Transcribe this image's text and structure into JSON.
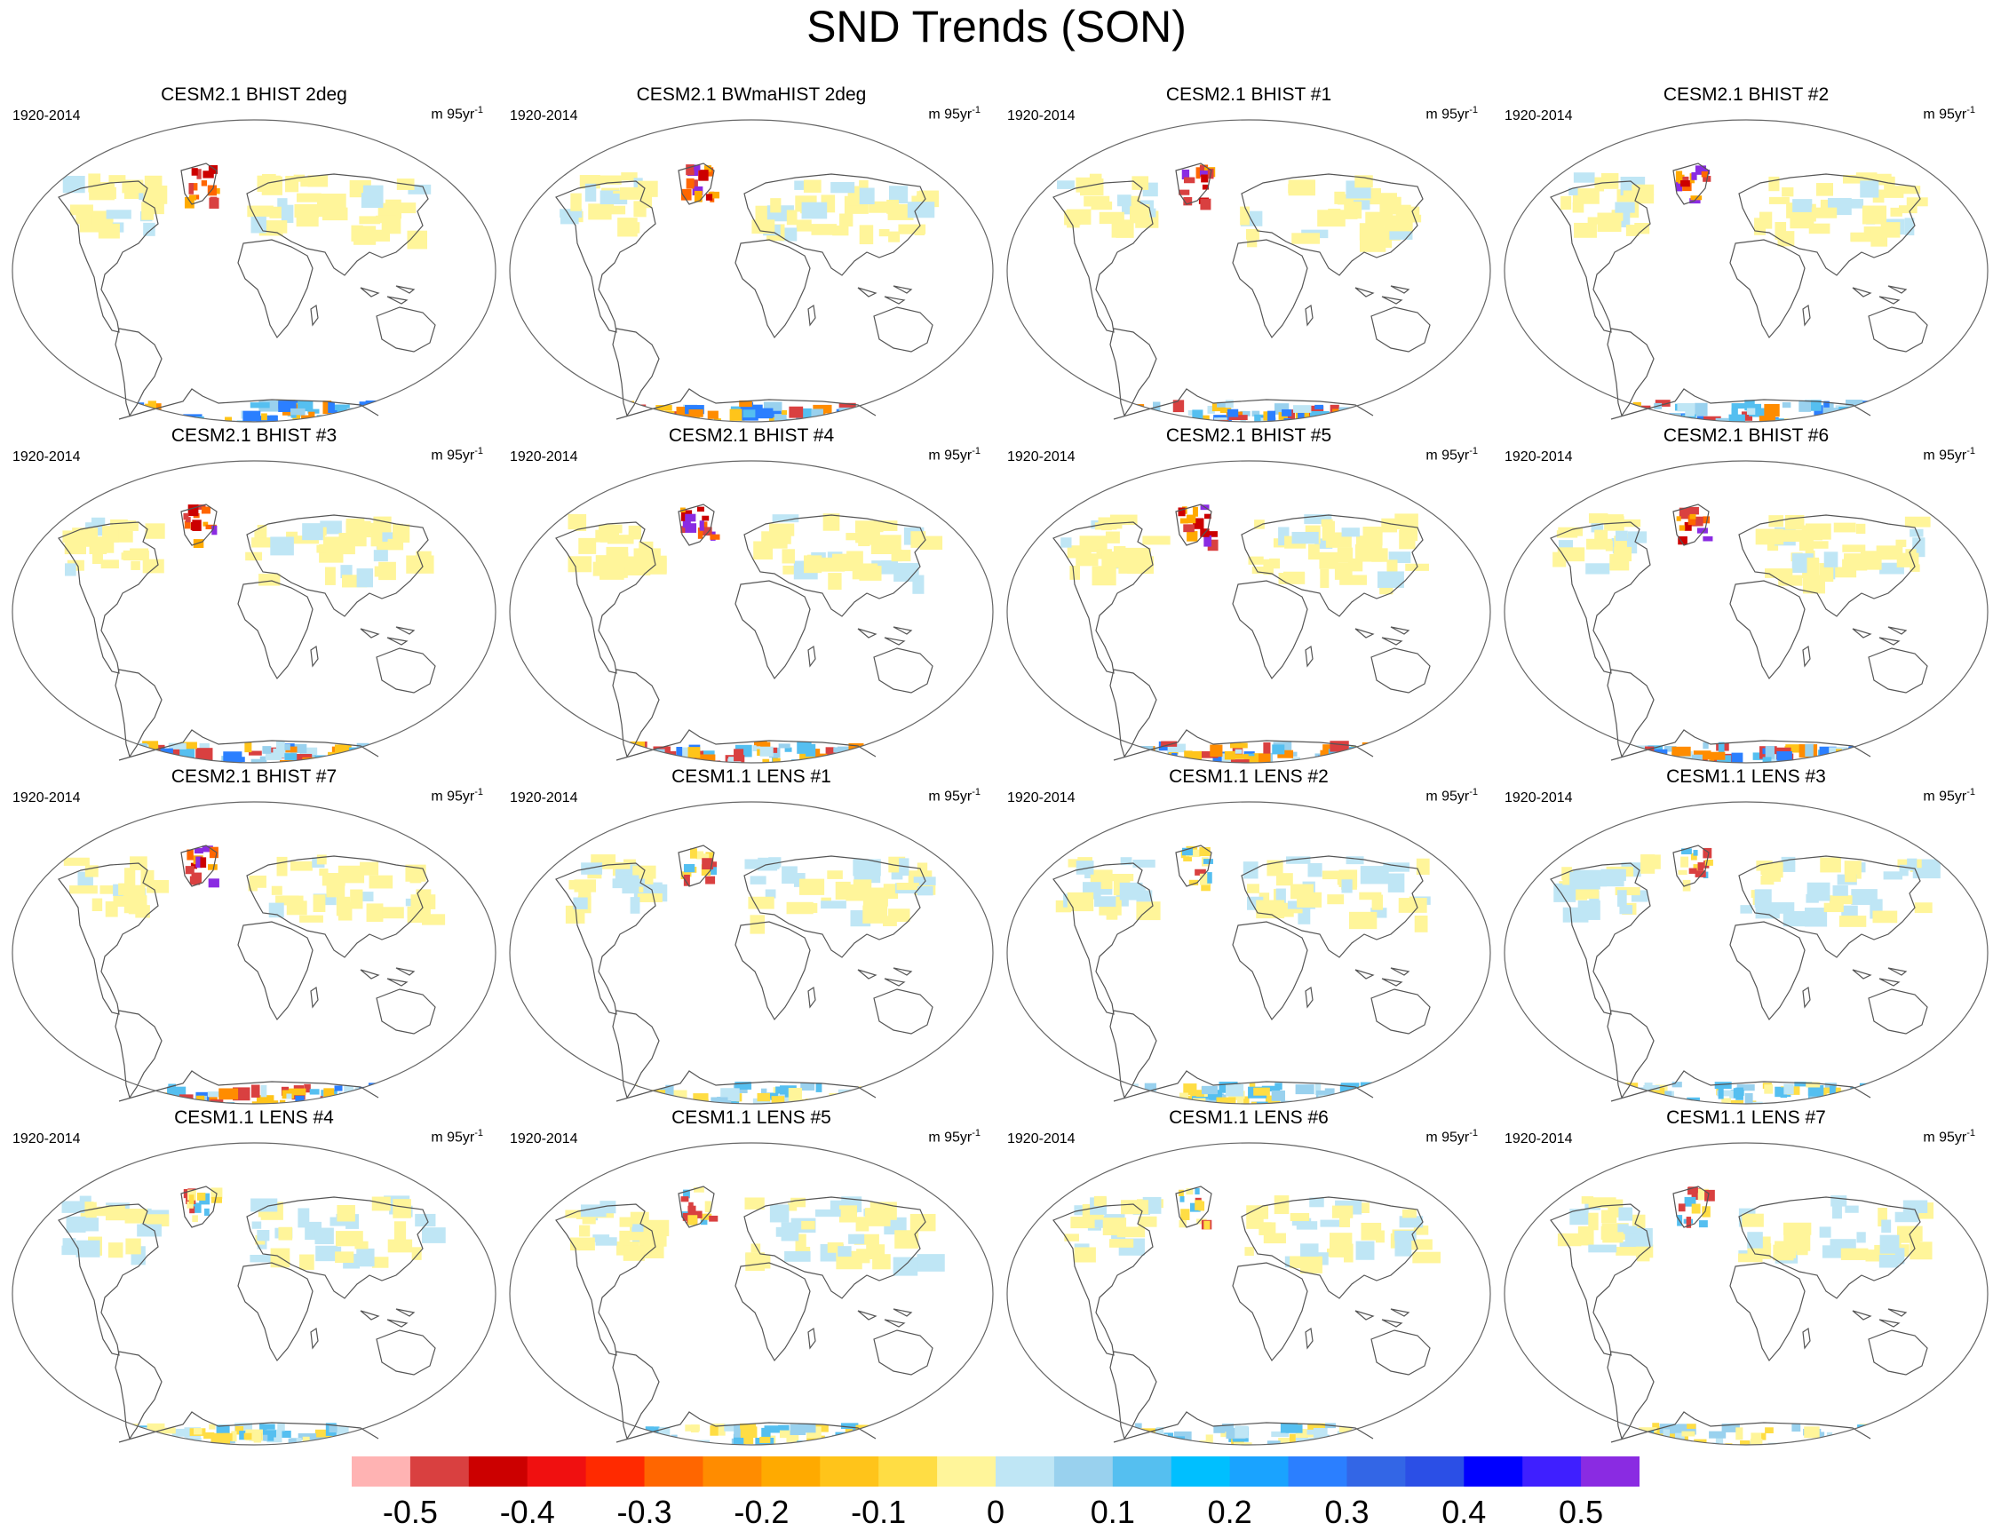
{
  "title": "SND Trends (SON)",
  "panel_common": {
    "period": "1920-2014",
    "units_base": "m 95yr",
    "units_exp": "-1"
  },
  "panels": [
    {
      "title": "CESM2.1 BHIST 2deg",
      "group": "cesm2"
    },
    {
      "title": "CESM2.1 BWmaHIST 2deg",
      "group": "cesm2"
    },
    {
      "title": "CESM2.1 BHIST #1",
      "group": "cesm2"
    },
    {
      "title": "CESM2.1 BHIST #2",
      "group": "cesm2"
    },
    {
      "title": "CESM2.1 BHIST #3",
      "group": "cesm2"
    },
    {
      "title": "CESM2.1 BHIST #4",
      "group": "cesm2"
    },
    {
      "title": "CESM2.1 BHIST #5",
      "group": "cesm2"
    },
    {
      "title": "CESM2.1 BHIST #6",
      "group": "cesm2"
    },
    {
      "title": "CESM2.1 BHIST #7",
      "group": "cesm2"
    },
    {
      "title": "CESM1.1 LENS #1",
      "group": "cesm1"
    },
    {
      "title": "CESM1.1 LENS #2",
      "group": "cesm1"
    },
    {
      "title": "CESM1.1 LENS #3",
      "group": "cesm1"
    },
    {
      "title": "CESM1.1 LENS #4",
      "group": "cesm1"
    },
    {
      "title": "CESM1.1 LENS #5",
      "group": "cesm1"
    },
    {
      "title": "CESM1.1 LENS #6",
      "group": "cesm1"
    },
    {
      "title": "CESM1.1 LENS #7",
      "group": "cesm1"
    }
  ],
  "colorbar": {
    "colors": [
      "#ffb3b3",
      "#d94040",
      "#cc0000",
      "#f01010",
      "#ff2a00",
      "#ff6600",
      "#ff8c00",
      "#ffaa00",
      "#ffc41a",
      "#ffdd44",
      "#fff59a",
      "#bfe6f5",
      "#99d1ee",
      "#55bff0",
      "#00bfff",
      "#1aa3ff",
      "#2b7fff",
      "#3366e6",
      "#2b4fe6",
      "#0000ff",
      "#3f1fff",
      "#8a2be2"
    ],
    "labels": [
      "-0.5",
      "-0.4",
      "-0.3",
      "-0.2",
      "-0.1",
      "0",
      "0.1",
      "0.2",
      "0.3",
      "0.4",
      "0.5"
    ]
  }
}
